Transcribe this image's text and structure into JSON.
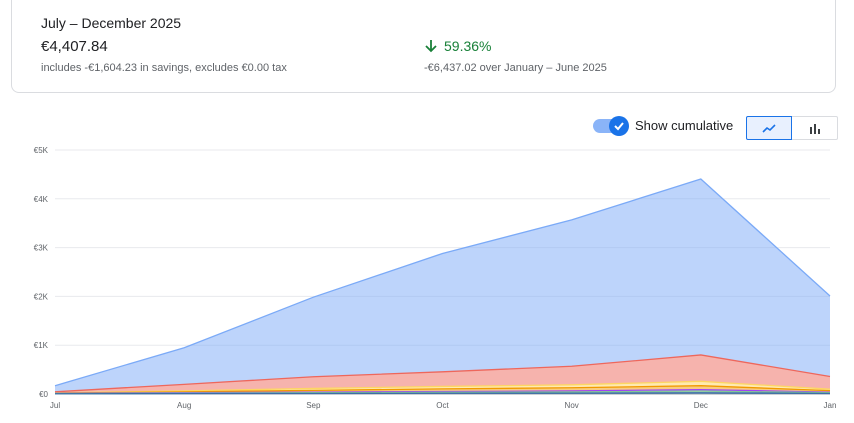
{
  "summary": {
    "period": "July – December 2025",
    "total": "€4,407.84",
    "total_note": "includes -€1,604.23 in savings, excludes €0.00 tax",
    "change": "59.36%",
    "change_note": "-€6,437.02 over January – June 2025"
  },
  "controls": {
    "toggle_label": "Show cumulative",
    "toggle_on": true,
    "views": [
      "line-chart-icon",
      "bar-chart-icon"
    ]
  },
  "chart_data": {
    "type": "area",
    "stacked": true,
    "categories": [
      "Jul",
      "Aug",
      "Sep",
      "Oct",
      "Nov",
      "Dec",
      "Jan"
    ],
    "ylim": [
      0,
      5000
    ],
    "yticks": [
      0,
      1000,
      2000,
      3000,
      4000,
      5000
    ],
    "ytick_labels": [
      "€0",
      "€1K",
      "€2K",
      "€3K",
      "€4K",
      "€5K"
    ],
    "grid": true,
    "series": [
      {
        "color": "#3c6ea8",
        "values": [
          5,
          8,
          12,
          15,
          18,
          25,
          12
        ]
      },
      {
        "color": "#81c995",
        "values": [
          5,
          10,
          15,
          20,
          25,
          35,
          15
        ]
      },
      {
        "color": "#a142f4",
        "values": [
          5,
          10,
          12,
          15,
          20,
          30,
          12
        ]
      },
      {
        "color": "#f29900",
        "values": [
          5,
          15,
          35,
          55,
          65,
          80,
          30
        ]
      },
      {
        "color": "#fdd663",
        "values": [
          5,
          20,
          40,
          50,
          60,
          90,
          30
        ]
      },
      {
        "color": "#ee675c",
        "values": [
          20,
          135,
          240,
          300,
          380,
          540,
          260
        ]
      },
      {
        "color": "#7baaf7",
        "values": [
          125,
          750,
          1630,
          2425,
          3000,
          3605,
          1650
        ]
      }
    ]
  }
}
